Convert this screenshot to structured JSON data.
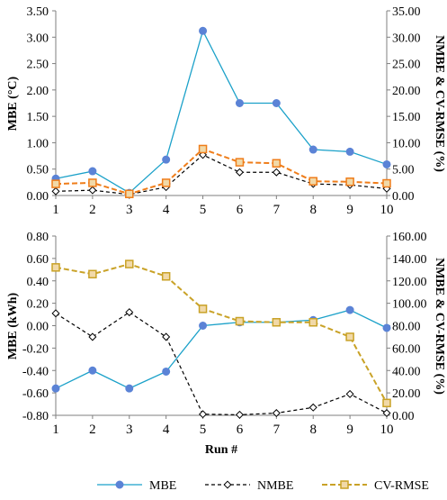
{
  "chart_data": [
    {
      "type": "line",
      "x": [
        "1",
        "2",
        "3",
        "4",
        "5",
        "6",
        "7",
        "8",
        "9",
        "10"
      ],
      "ylabel": "MBE (°C)",
      "y2label": "NMBE & CV-RMSE (%)",
      "xlabel": "",
      "ylim": [
        0,
        3.5
      ],
      "y_ticks": [
        "0.00",
        "0.50",
        "1.00",
        "1.50",
        "2.00",
        "2.50",
        "3.00",
        "3.50"
      ],
      "y2lim": [
        0,
        35
      ],
      "y2_ticks": [
        "0.00",
        "5.00",
        "10.00",
        "15.00",
        "20.00",
        "25.00",
        "30.00",
        "35.00"
      ],
      "series": [
        {
          "name": "MBE",
          "axis": "left",
          "values": [
            0.32,
            0.46,
            0.05,
            0.68,
            3.12,
            1.75,
            1.75,
            0.87,
            0.83,
            0.59
          ]
        },
        {
          "name": "NMBE",
          "axis": "right",
          "values": [
            0.8,
            1.0,
            0.2,
            1.6,
            7.7,
            4.4,
            4.4,
            2.2,
            2.0,
            1.3
          ]
        },
        {
          "name": "CV-RMSE",
          "axis": "right",
          "values": [
            2.2,
            2.4,
            0.3,
            2.4,
            8.8,
            6.3,
            6.1,
            2.7,
            2.6,
            2.3
          ]
        }
      ]
    },
    {
      "type": "line",
      "x": [
        "1",
        "2",
        "3",
        "4",
        "5",
        "6",
        "7",
        "8",
        "9",
        "10"
      ],
      "ylabel": "MBE (kWh)",
      "y2label": "NMBE & CV-RMSE (%)",
      "xlabel": "Run #",
      "ylim": [
        -0.8,
        0.8
      ],
      "y_ticks": [
        "-0.80",
        "-0.60",
        "-0.40",
        "-0.20",
        "0.00",
        "0.20",
        "0.40",
        "0.60",
        "0.80"
      ],
      "y2lim": [
        0,
        160
      ],
      "y2_ticks": [
        "0.00",
        "20.00",
        "40.00",
        "60.00",
        "80.00",
        "100.00",
        "120.00",
        "140.00",
        "160.00"
      ],
      "series": [
        {
          "name": "MBE",
          "axis": "left",
          "values": [
            -0.56,
            -0.4,
            -0.56,
            -0.41,
            0.0,
            0.03,
            0.03,
            0.05,
            0.14,
            -0.02
          ]
        },
        {
          "name": "NMBE",
          "axis": "right",
          "values": [
            91,
            70,
            92,
            70,
            1,
            0.5,
            2,
            7,
            19,
            2
          ]
        },
        {
          "name": "CV-RMSE",
          "axis": "right",
          "values": [
            132,
            126,
            135,
            124,
            95,
            84,
            83,
            83,
            70,
            11
          ]
        }
      ]
    }
  ],
  "legend": {
    "position": "bottom",
    "items": [
      {
        "name": "MBE",
        "color": "#1ba1c9",
        "marker": "circle",
        "marker_color": "#5b83d6",
        "dash": "solid"
      },
      {
        "name": "NMBE",
        "color": "#000000",
        "marker": "diamond",
        "marker_color": "#ffffff",
        "dash": "dashed"
      },
      {
        "name": "CV-RMSE",
        "color": "#c9a227",
        "marker": "square",
        "marker_color": "#f1d9a8",
        "dash": "dashed"
      }
    ]
  },
  "colors": {
    "mbe_line": "#1ba1c9",
    "mbe_marker": "#5b83d6",
    "nmbe": "#000000",
    "cvrmse_top": "#ef7d1a",
    "cvrmse_bottom": "#c9a227",
    "cvrmse_marker": "#f1d9a8",
    "axis": "#7f7f7f"
  }
}
